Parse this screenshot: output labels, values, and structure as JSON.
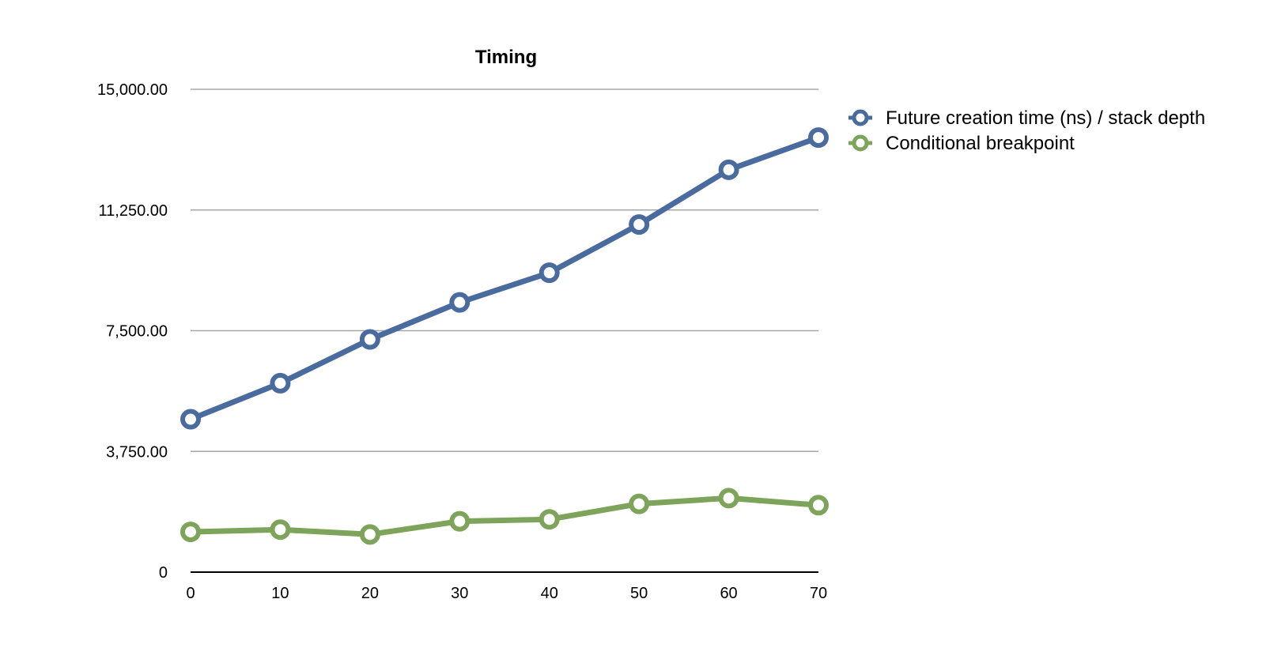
{
  "chart_data": {
    "type": "line",
    "title": "Timing",
    "xlabel": "",
    "ylabel": "",
    "x": [
      0,
      10,
      20,
      30,
      40,
      50,
      60,
      70
    ],
    "x_ticks": [
      "0",
      "10",
      "20",
      "30",
      "40",
      "50",
      "60",
      "70"
    ],
    "ylim": [
      0,
      15000
    ],
    "y_ticks": [
      "0",
      "3,750.00",
      "7,500.00",
      "11,250.00",
      "15,000.00"
    ],
    "grid": true,
    "legend_position": "top-right",
    "series": [
      {
        "name": "Future creation time (ns) / stack depth",
        "color": "#4a6b9e",
        "values": [
          4750,
          5870,
          7230,
          8380,
          9300,
          10800,
          12500,
          13500
        ]
      },
      {
        "name": "Conditional breakpoint",
        "color": "#7ea45b",
        "values": [
          1250,
          1320,
          1170,
          1580,
          1640,
          2120,
          2300,
          2080
        ]
      }
    ]
  }
}
